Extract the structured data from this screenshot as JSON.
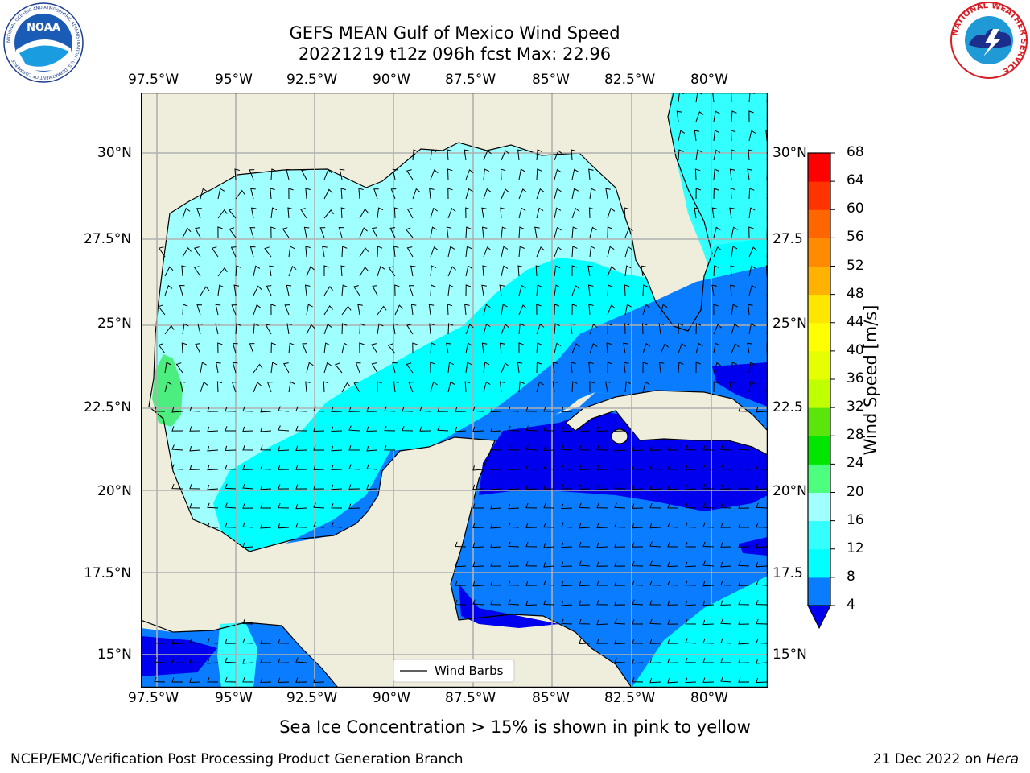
{
  "title_line1": "GEFS MEAN Gulf of Mexico Wind Speed",
  "title_line2": "20221219 t12z 096h fcst   Max: 22.96",
  "caption": "Sea Ice Concentration > 15% is shown in pink to yellow",
  "footer_left": "NCEP/EMC/Verification Post Processing Product Generation Branch",
  "footer_right_date": "21 Dec 2022 on ",
  "footer_right_host": "Hera",
  "legend_label": "Wind Barbs",
  "logos": {
    "left": "noaa-logo",
    "right": "nws-logo",
    "left_text": "NOAA",
    "left_ring": "NATIONAL OCEANIC AND ATMOSPHERIC ADMINISTRATION · U.S. DEPARTMENT OF COMMERCE",
    "right_ring": "NATIONAL WEATHER SERVICE"
  },
  "lon_ticks": [
    "97.5°W",
    "95°W",
    "92.5°W",
    "90°W",
    "87.5°W",
    "85°W",
    "82.5°W",
    "80°W"
  ],
  "lat_ticks": [
    "30°N",
    "27.5°N",
    "25°N",
    "22.5°N",
    "20°N",
    "17.5°N",
    "15°N"
  ],
  "lat_ticks_right": [
    "30°N",
    "27.5",
    "25°N",
    "22.5",
    "20°N",
    "17.5",
    "15°N"
  ],
  "colorbar": {
    "label": "Wind Speed [m/s]",
    "levels": [
      "4",
      "8",
      "12",
      "16",
      "20",
      "24",
      "28",
      "32",
      "36",
      "40",
      "44",
      "48",
      "52",
      "56",
      "60",
      "64",
      "68"
    ],
    "colors": [
      "#0a7cff",
      "#00ffff",
      "#33ffff",
      "#a0ffff",
      "#4cff7f",
      "#00e600",
      "#5ae60a",
      "#bfff00",
      "#e6ff00",
      "#ffff00",
      "#ffe600",
      "#ffb300",
      "#ff8c00",
      "#ff6600",
      "#ff3300",
      "#ff0000"
    ],
    "under_color": "#0000ee"
  },
  "colors": {
    "land": "#efeedd",
    "ocean_low": "#0000ee",
    "ocean_blue": "#0a7cff",
    "ocean_cyan": "#00ffff",
    "ocean_light": "#a0ffff",
    "ocean_green": "#4cef7f"
  }
}
